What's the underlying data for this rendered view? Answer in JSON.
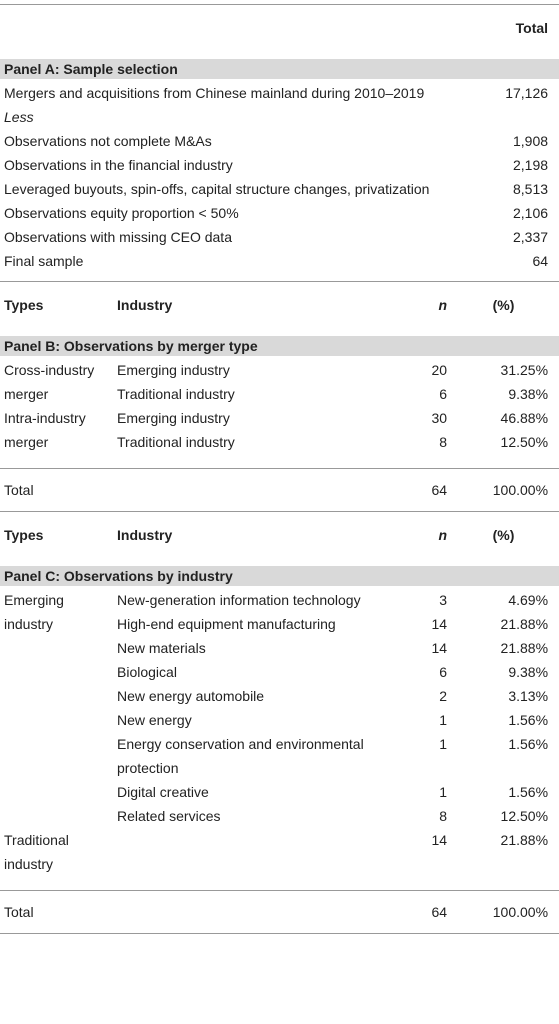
{
  "header": {
    "total": "Total"
  },
  "panel_a": {
    "title": "Panel A: Sample selection",
    "rows": [
      {
        "label": "Mergers and acquisitions from Chinese mainland during 2010–2019",
        "value": "17,126"
      },
      {
        "label": "Less",
        "italic": true
      },
      {
        "label": "Observations not complete M&As",
        "value": "1,908"
      },
      {
        "label": "Observations in the financial industry",
        "value": "2,198"
      },
      {
        "label": "Leveraged buyouts, spin-offs, capital structure changes, privatization",
        "value": "8,513"
      },
      {
        "label": "Observations equity proportion < 50%",
        "value": "2,106"
      },
      {
        "label": "Observations with missing CEO data",
        "value": "2,337"
      },
      {
        "label": "Final sample",
        "value": "64"
      }
    ]
  },
  "panel_b": {
    "columns": [
      "Types",
      "Industry",
      "n",
      "(%)"
    ],
    "title": "Panel B: Observations by merger type",
    "groups": [
      {
        "type": "Cross-industry merger",
        "rows": [
          {
            "industry": "Emerging industry",
            "n": "20",
            "pct": "31.25%"
          },
          {
            "industry": "Traditional industry",
            "n": "6",
            "pct": "9.38%"
          }
        ]
      },
      {
        "type": "Intra-industry merger",
        "rows": [
          {
            "industry": "Emerging industry",
            "n": "30",
            "pct": "46.88%"
          },
          {
            "industry": "Traditional industry",
            "n": "8",
            "pct": "12.50%"
          }
        ]
      }
    ],
    "total": {
      "label": "Total",
      "n": "64",
      "pct": "100.00%"
    }
  },
  "panel_c": {
    "columns": [
      "Types",
      "Industry",
      "n",
      "(%)"
    ],
    "title": "Panel C: Observations by industry",
    "groups": [
      {
        "type": "Emerging industry",
        "rows": [
          {
            "industry": "New-generation information technology",
            "n": "3",
            "pct": "4.69%"
          },
          {
            "industry": "High-end equipment manufacturing",
            "n": "14",
            "pct": "21.88%"
          },
          {
            "industry": "New materials",
            "n": "14",
            "pct": "21.88%"
          },
          {
            "industry": "Biological",
            "n": "6",
            "pct": "9.38%"
          },
          {
            "industry": "New energy automobile",
            "n": "2",
            "pct": "3.13%"
          },
          {
            "industry": "New energy",
            "n": "1",
            "pct": "1.56%"
          },
          {
            "industry": "Energy conservation and environmental protection",
            "n": "1",
            "pct": "1.56%"
          },
          {
            "industry": "Digital creative",
            "n": "1",
            "pct": "1.56%"
          },
          {
            "industry": "Related services",
            "n": "8",
            "pct": "12.50%"
          }
        ]
      },
      {
        "type": "Traditional industry",
        "rows": [
          {
            "n": "14",
            "pct": "21.88%"
          }
        ]
      }
    ],
    "total": {
      "label": "Total",
      "n": "64",
      "pct": "100.00%"
    }
  }
}
